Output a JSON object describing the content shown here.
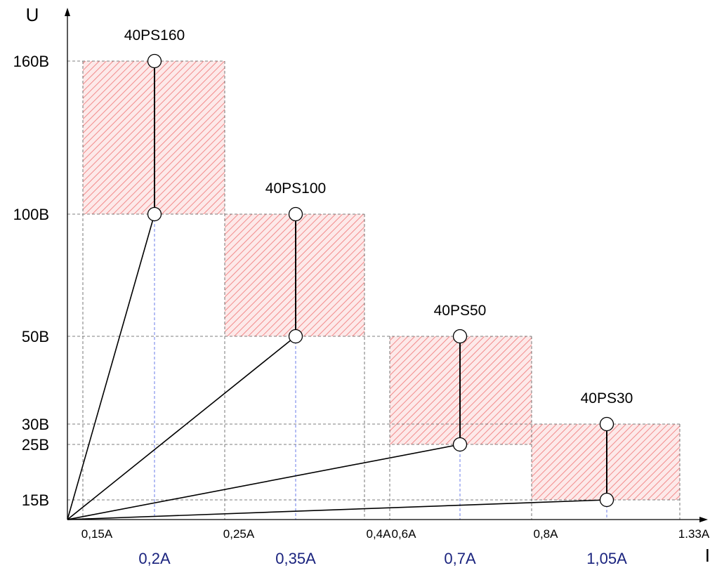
{
  "chart_data": {
    "type": "scatter",
    "xlabel": "I",
    "ylabel": "U",
    "y_ticks": [
      {
        "label": "160B",
        "value": 160
      },
      {
        "label": "100B",
        "value": 100
      },
      {
        "label": "50B",
        "value": 50
      },
      {
        "label": "30B",
        "value": 30
      },
      {
        "label": "25B",
        "value": 25
      },
      {
        "label": "15B",
        "value": 15
      }
    ],
    "x_ticks_top": [
      {
        "label": "0,15A",
        "value": 0.15
      },
      {
        "label": "0,25A",
        "value": 0.25
      },
      {
        "label": "0,4A",
        "value": 0.4
      },
      {
        "label": "0,6A",
        "value": 0.6
      },
      {
        "label": "0,8A",
        "value": 0.8
      },
      {
        "label": "1.33A",
        "value": 1.33
      }
    ],
    "x_ticks_bottom": [
      {
        "label": "0,2A",
        "value": 0.2
      },
      {
        "label": "0,35A",
        "value": 0.35
      },
      {
        "label": "0,7A",
        "value": 0.7
      },
      {
        "label": "1,05A",
        "value": 1.05
      }
    ],
    "series": [
      {
        "name": "40PS160",
        "current": 0.2,
        "u_min": 100,
        "u_max": 160,
        "region": {
          "i_min": 0.15,
          "i_max": 0.25,
          "u_min": 100,
          "u_max": 160
        }
      },
      {
        "name": "40PS100",
        "current": 0.35,
        "u_min": 50,
        "u_max": 100,
        "region": {
          "i_min": 0.25,
          "i_max": 0.4,
          "u_min": 50,
          "u_max": 100
        }
      },
      {
        "name": "40PS50",
        "current": 0.7,
        "u_min": 25,
        "u_max": 50,
        "region": {
          "i_min": 0.6,
          "i_max": 0.8,
          "u_min": 25,
          "u_max": 50
        }
      },
      {
        "name": "40PS30",
        "current": 1.05,
        "u_min": 15,
        "u_max": 30,
        "region": {
          "i_min": 0.8,
          "i_max": 1.33,
          "u_min": 15,
          "u_max": 30
        }
      }
    ],
    "grid": "dashed reference lines",
    "colors": {
      "axis": "#000000",
      "grid": "#555555",
      "hatch": "#f28b8b",
      "region_fill": "#fde9e9",
      "guide": "#5b6ee8",
      "bottom_label": "#1a237e"
    }
  }
}
